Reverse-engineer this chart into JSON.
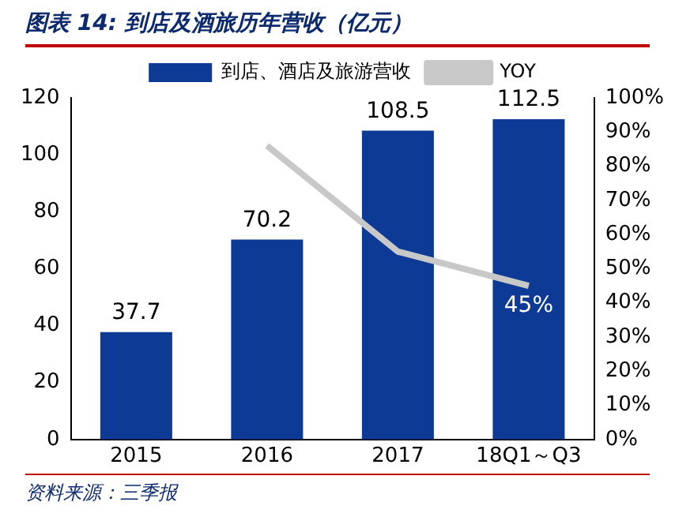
{
  "chart_data": {
    "type": "bar",
    "title": "图表 14:  到店及酒旅历年营收（亿元）",
    "categories": [
      "2015",
      "2016",
      "2017",
      "18Q1～Q3"
    ],
    "series": [
      {
        "name": "到店、酒店及旅游营收",
        "color": "#0d3a94",
        "values": [
          37.7,
          70.2,
          108.5,
          112.5
        ],
        "value_labels": [
          "37.7",
          "70.2",
          "108.5",
          "112.5"
        ]
      },
      {
        "name": "YOY",
        "type": "line",
        "axis": "y2",
        "color": "#c8c8c8",
        "values": [
          null,
          86,
          55,
          45
        ],
        "value_labels": [
          null,
          null,
          null,
          "45%"
        ]
      }
    ],
    "ylim": [
      0,
      120
    ],
    "yticks": [
      0,
      20,
      40,
      60,
      80,
      100,
      120
    ],
    "y2lim": [
      0,
      100
    ],
    "y2ticks": [
      {
        "value": 0,
        "label": "0%"
      },
      {
        "value": 10,
        "label": "10%"
      },
      {
        "value": 20,
        "label": "20%"
      },
      {
        "value": 30,
        "label": "30%"
      },
      {
        "value": 40,
        "label": "40%"
      },
      {
        "value": 50,
        "label": "50%"
      },
      {
        "value": 60,
        "label": "60%"
      },
      {
        "value": 70,
        "label": "70%"
      },
      {
        "value": 80,
        "label": "80%"
      },
      {
        "value": 90,
        "label": "90%"
      },
      {
        "value": 100,
        "label": "100%"
      }
    ],
    "grid": false,
    "legend": "top",
    "marker": "none",
    "annotations": [
      "资料来源：三季报"
    ]
  }
}
